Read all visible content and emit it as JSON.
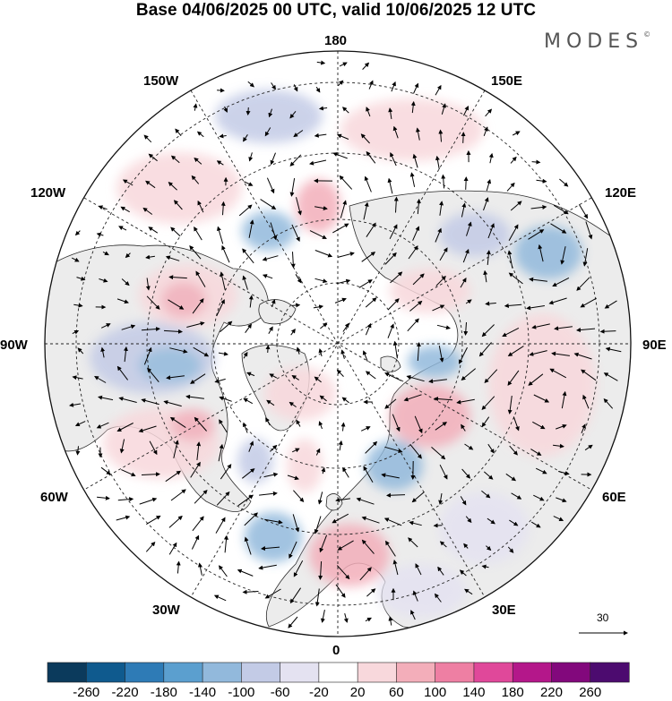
{
  "title": "Base 04/06/2025 00 UTC, valid 10/06/2025 12 UTC",
  "brand": "MODES",
  "brand_mark": "©",
  "longitude_labels": {
    "top": "180",
    "bottom": "0",
    "left": "90W",
    "right": "90E",
    "upper_left_1": "150W",
    "upper_left_2": "120W",
    "upper_right_1": "150E",
    "upper_right_2": "120E",
    "lower_left_1": "60W",
    "lower_left_2": "30W",
    "lower_right_1": "60E",
    "lower_right_2": "30E"
  },
  "reference_vector": "30",
  "colorbar": {
    "labels": [
      "-260",
      "-220",
      "-180",
      "-140",
      "-100",
      "-60",
      "-20",
      "20",
      "60",
      "100",
      "140",
      "180",
      "220",
      "260"
    ],
    "colors": [
      "#0b3a5c",
      "#0f5a8e",
      "#2e7bb6",
      "#5b9fcf",
      "#92b9dc",
      "#c3cbe6",
      "#e4e2f1",
      "#ffffff",
      "#f8d8dc",
      "#f3aeba",
      "#ee7fa3",
      "#e0489a",
      "#b4178a",
      "#82087c",
      "#4c0b6f"
    ]
  },
  "colors": {
    "land": "#ececec",
    "ocean": "#ffffff",
    "coast": "#2a2a2a",
    "grid": "#222222"
  }
}
